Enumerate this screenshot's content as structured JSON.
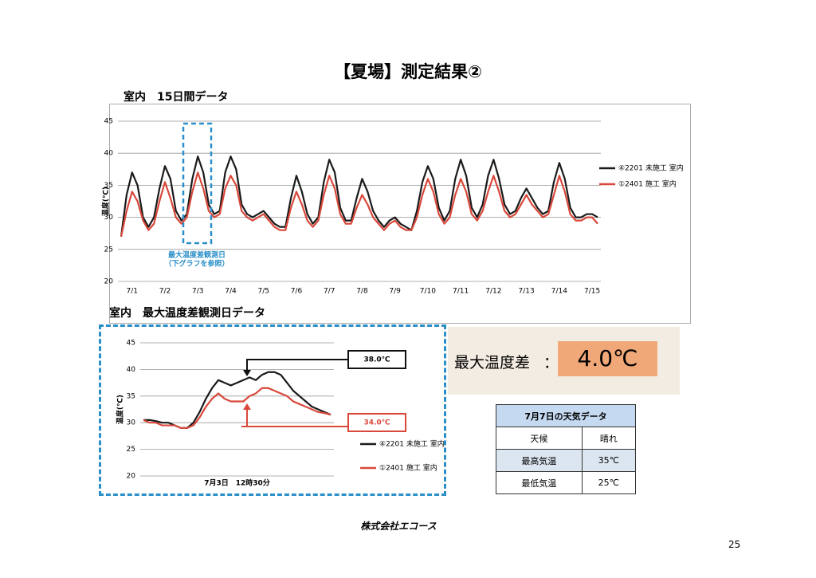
{
  "title": "【夏場】測定結果②",
  "section1_label": "室内　15日間データ",
  "section2_label": "室内　最大温度差観測日データ",
  "chart_data": [
    {
      "type": "line",
      "y_label": "温度(℃)",
      "categories": [
        null,
        null,
        "7/1",
        null,
        null,
        null,
        null,
        null,
        "7/2",
        null,
        null,
        null,
        null,
        null,
        "7/3",
        null,
        null,
        null,
        null,
        null,
        "7/4",
        null,
        null,
        null,
        null,
        null,
        "7/5",
        null,
        null,
        null,
        null,
        null,
        "7/6",
        null,
        null,
        null,
        null,
        null,
        "7/7",
        null,
        null,
        null,
        null,
        null,
        "7/8",
        null,
        null,
        null,
        null,
        null,
        "7/9",
        null,
        null,
        null,
        null,
        null,
        "7/10",
        null,
        null,
        null,
        null,
        null,
        "7/11",
        null,
        null,
        null,
        null,
        null,
        "7/12",
        null,
        null,
        null,
        null,
        null,
        "7/13",
        null,
        null,
        null,
        null,
        null,
        "7/14",
        null,
        null,
        null,
        null,
        null,
        "7/15",
        null
      ],
      "series": [
        {
          "name": "④2201 未施工 室内",
          "color": "#1a1a1a",
          "values": [
            27,
            33.5,
            37,
            35,
            30,
            28.5,
            30,
            34.5,
            38,
            36,
            31,
            29.5,
            30.5,
            36,
            39.5,
            37,
            32,
            30.5,
            31,
            37,
            39.5,
            37.5,
            32,
            30.5,
            30,
            30.5,
            31,
            30,
            29,
            28.5,
            28.5,
            33,
            36.5,
            34,
            30.5,
            29,
            30,
            35.5,
            39,
            37,
            31.5,
            29.5,
            29.5,
            33,
            36,
            34,
            31,
            29.5,
            28.5,
            29.5,
            30,
            29,
            28.5,
            28,
            31,
            35.5,
            38,
            36,
            31.5,
            29.5,
            31,
            36,
            39,
            36.5,
            31.5,
            30,
            32,
            36.5,
            39,
            36,
            32,
            30.5,
            31,
            33,
            34.5,
            33,
            31.5,
            30.5,
            31,
            35.5,
            38.5,
            36,
            31.5,
            30,
            30,
            30.5,
            30.5,
            30
          ]
        },
        {
          "name": "①2401 施工 室内",
          "color": "#d9483b",
          "values": [
            27,
            31,
            34,
            32.5,
            29.5,
            28,
            29,
            32.5,
            35.5,
            33,
            30,
            29,
            30,
            34,
            37,
            34.5,
            31,
            30,
            30.5,
            34.5,
            36.5,
            35,
            31,
            30,
            29.5,
            30,
            30.5,
            29.5,
            28.5,
            28,
            28,
            31.5,
            34,
            32,
            29.5,
            28.5,
            29.5,
            33.5,
            36.5,
            34.5,
            30.5,
            29,
            29,
            31.5,
            33.5,
            32,
            30,
            29,
            28,
            29,
            29.5,
            28.5,
            28,
            28,
            30,
            33.5,
            36,
            34,
            30.5,
            29,
            30,
            33.5,
            36,
            34,
            30.5,
            29.5,
            31,
            34,
            36.5,
            34,
            31,
            30,
            30.5,
            32,
            33.5,
            32,
            31,
            30,
            30.5,
            33.5,
            36.5,
            34,
            30.5,
            29.5,
            29.5,
            30,
            30,
            29
          ]
        }
      ],
      "ylim": [
        20,
        45
      ],
      "yticks": [
        20,
        25,
        30,
        35,
        40,
        45
      ],
      "grid": true,
      "legend": "right",
      "annotation": [
        "最大温度差観測日",
        "（下グラフを参照）"
      ]
    },
    {
      "type": "line",
      "y_label": "温度(℃)",
      "x_label": "7月3日　12時30分",
      "series": [
        {
          "name": "④2201 未施工 室内",
          "color": "#1a1a1a",
          "values": [
            30.5,
            30.5,
            30.3,
            30,
            30,
            29.5,
            29,
            29,
            30,
            32,
            34.5,
            36.5,
            38,
            37.5,
            37,
            37.5,
            38,
            38.5,
            38,
            39,
            39.5,
            39.5,
            39,
            37.5,
            36,
            35,
            34,
            33,
            32.5,
            32,
            31.5
          ]
        },
        {
          "name": "①2401 施工 室内",
          "color": "#d9483b",
          "values": [
            30.5,
            30,
            30,
            29.5,
            29.5,
            29.5,
            29,
            29,
            29.5,
            31,
            33,
            34.5,
            35.5,
            34.5,
            34,
            34,
            34,
            35,
            35.5,
            36.5,
            36.5,
            36,
            35.5,
            35,
            34,
            33.5,
            33,
            32.5,
            32,
            31.8,
            31.5
          ]
        }
      ],
      "ylim": [
        20,
        45
      ],
      "yticks": [
        20,
        25,
        30,
        35,
        40,
        45
      ],
      "grid": true,
      "legend": "bottom-right",
      "annotations": [
        "38.0℃",
        "34.0℃"
      ]
    }
  ],
  "max_diff": {
    "label": "最大温度差",
    "separator": "：",
    "value": "4.0℃"
  },
  "weather_table": {
    "title": "7月7日の天気データ",
    "rows": [
      [
        "天候",
        "晴れ"
      ],
      [
        "最高気温",
        "35℃"
      ],
      [
        "最低気温",
        "25℃"
      ]
    ]
  },
  "footer": "株式会社エコース",
  "page_number": "25"
}
